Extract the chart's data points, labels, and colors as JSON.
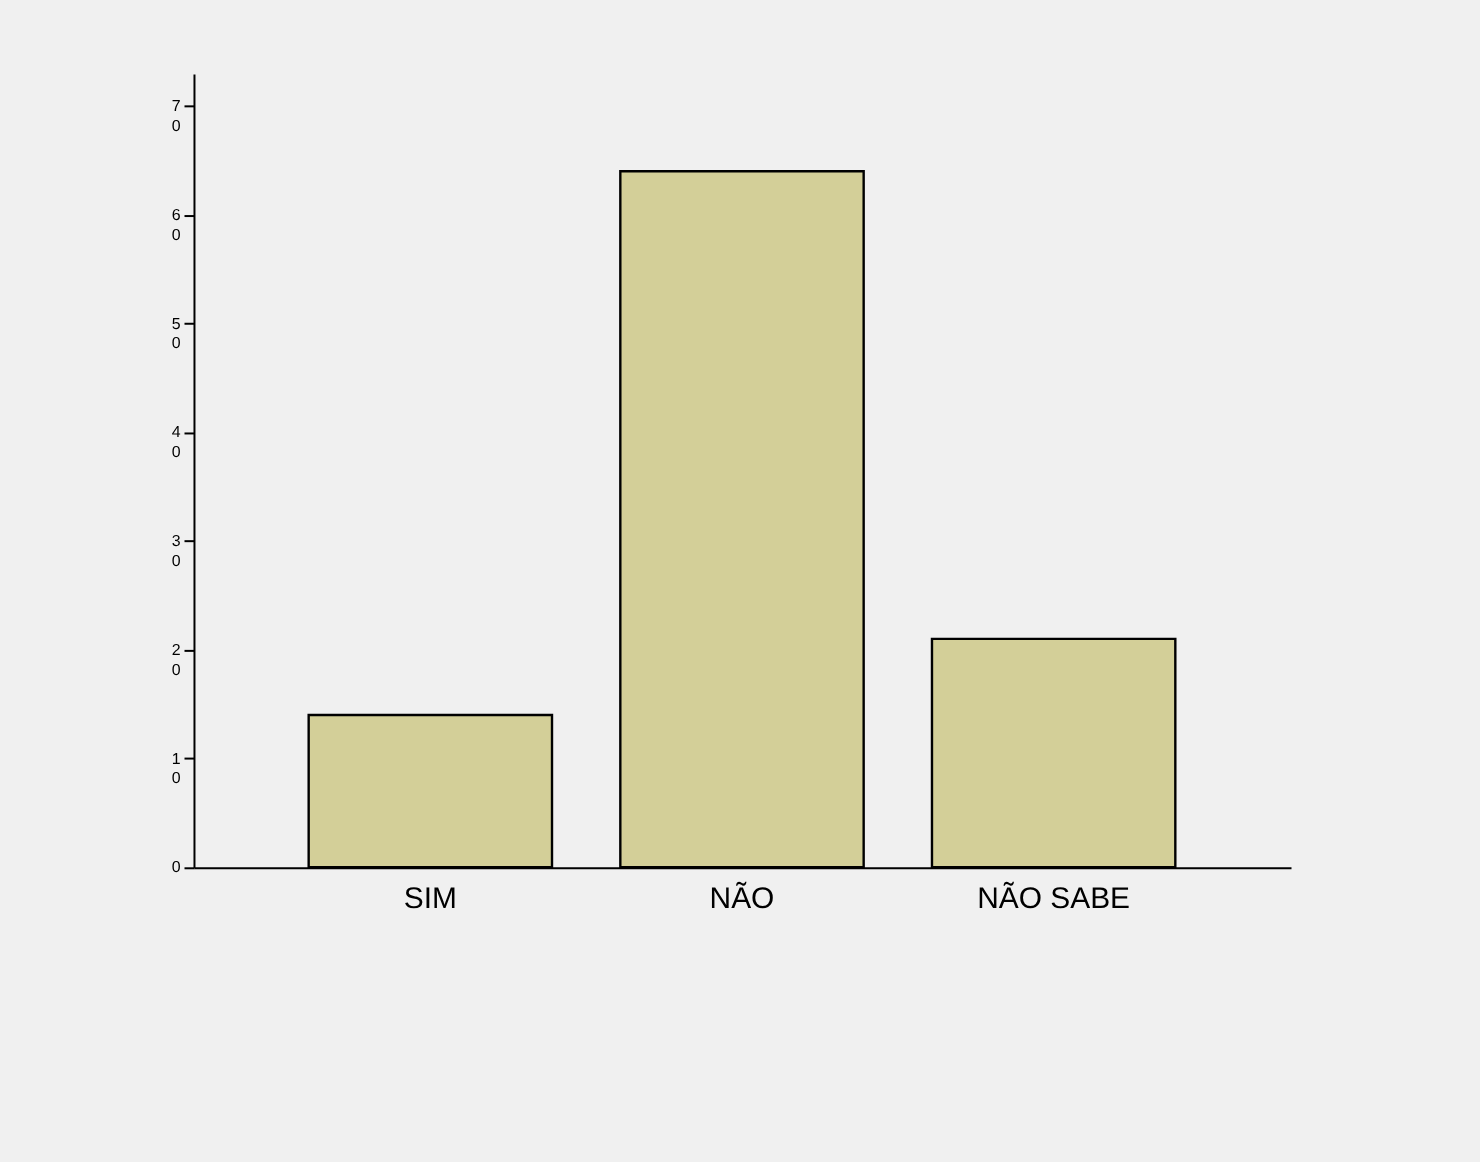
{
  "chart_data": {
    "type": "bar",
    "categories": [
      "SIM",
      "NÃO",
      "NÃO SABE"
    ],
    "values": [
      14,
      64,
      21
    ],
    "color": "#d3cf98",
    "ylim": [
      0,
      73
    ],
    "yticks": [
      0,
      10,
      20,
      30,
      40,
      50,
      60,
      70
    ],
    "grid": false
  }
}
